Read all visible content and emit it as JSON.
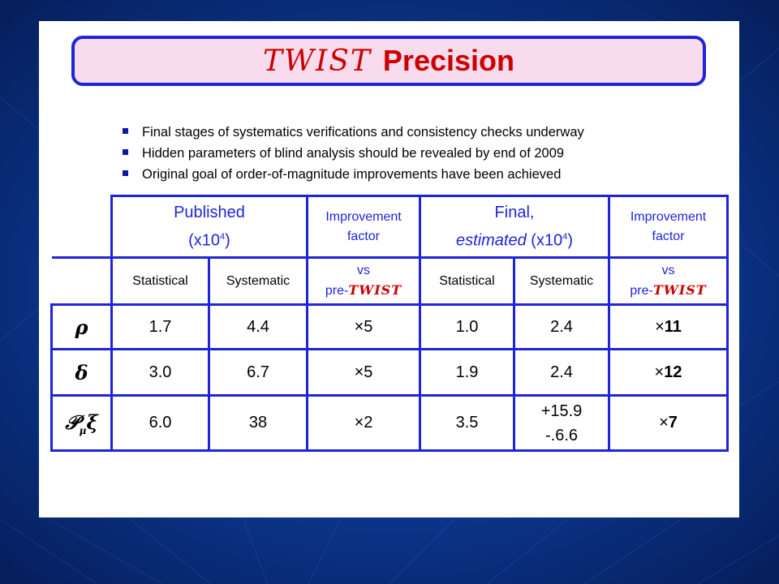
{
  "title": {
    "twist": "TWIST",
    "text": "Precision"
  },
  "bullets": [
    "Final stages of systematics verifications and consistency checks underway",
    "Hidden parameters of blind analysis should be revealed by end of 2009",
    "Original goal of order-of-magnitude improvements have been achieved"
  ],
  "table": {
    "published": {
      "line1": "Published",
      "line2": "(x10",
      "exp": "4",
      "close": ")"
    },
    "final": {
      "line1": "Final,",
      "line2_italic": "estimated",
      "line2": " (x10",
      "exp": "4",
      "close": ")"
    },
    "improvement_line1": "Improvement",
    "improvement_line2": "factor",
    "vs": "vs",
    "pre": "pre-",
    "twist": "TWIST",
    "statistical": "Statistical",
    "systematic": "Systematic",
    "rows": [
      {
        "param": "ρ",
        "pub_stat": "1.7",
        "pub_sys": "4.4",
        "pub_imp": "×5",
        "fin_stat": "1.0",
        "fin_sys": "2.4",
        "fin_sys2": "",
        "fin_imp_x": "×",
        "fin_imp": "11"
      },
      {
        "param": "δ",
        "pub_stat": "3.0",
        "pub_sys": "6.7",
        "pub_imp": "×5",
        "fin_stat": "1.9",
        "fin_sys": "2.4",
        "fin_sys2": "",
        "fin_imp_x": "×",
        "fin_imp": "12"
      },
      {
        "param_main": "𝒫",
        "param_sub": "μ",
        "param_tail": "ξ",
        "pub_stat": "6.0",
        "pub_sys": "38",
        "pub_imp": "×2",
        "fin_stat": "3.5",
        "fin_sys": "+15.9",
        "fin_sys2": "-.6.6",
        "fin_imp_x": "×",
        "fin_imp": "7"
      }
    ]
  },
  "colors": {
    "accent_blue": "#1f24d8",
    "accent_red": "#cc0000",
    "title_fill": "#f8dcee",
    "background": "#0b3489"
  }
}
